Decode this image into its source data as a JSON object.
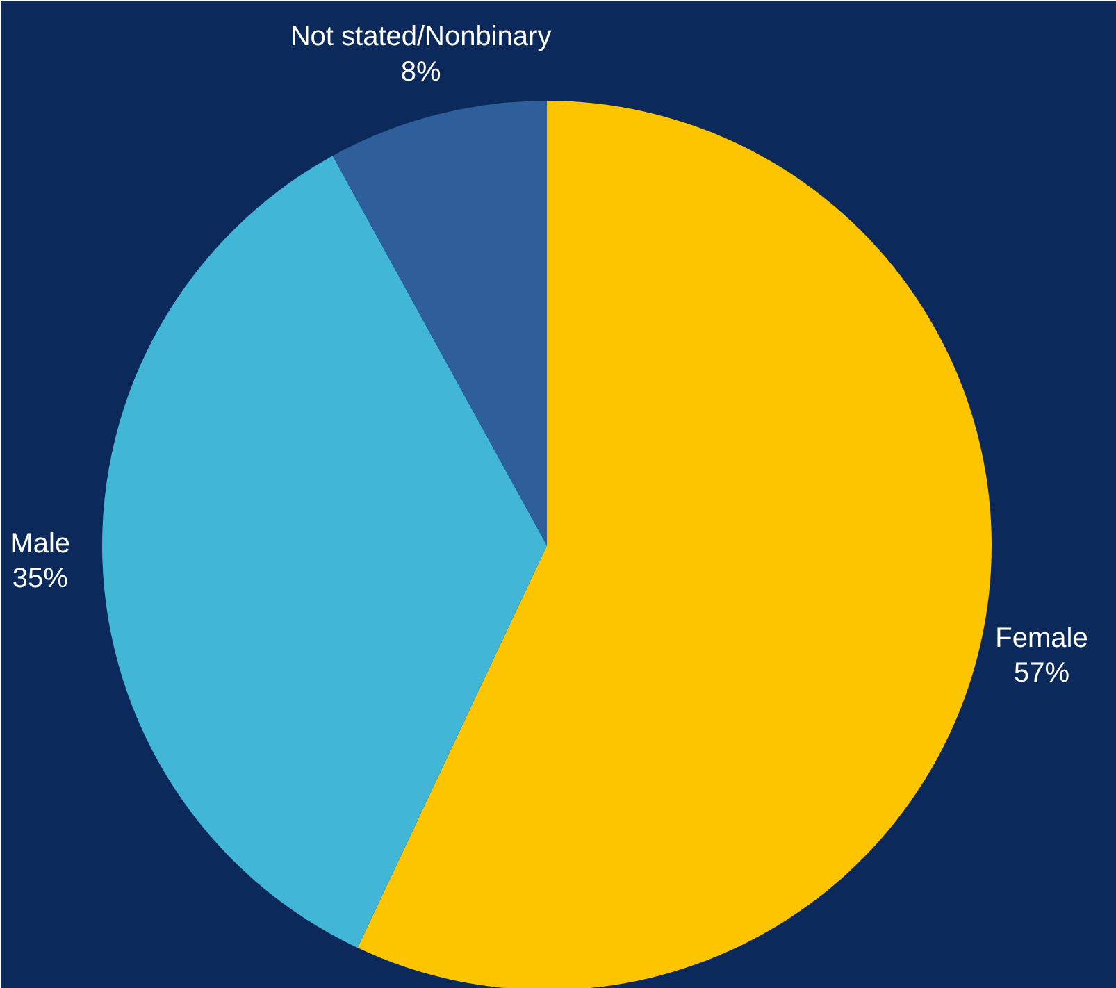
{
  "chart_data": {
    "type": "pie",
    "categories": [
      "Female",
      "Male",
      "Not stated/Nonbinary"
    ],
    "values": [
      57,
      35,
      8
    ],
    "colors": [
      "#fcc500",
      "#41b6d6",
      "#2e5f9a"
    ],
    "value_labels": [
      "57%",
      "35%",
      "8%"
    ]
  }
}
